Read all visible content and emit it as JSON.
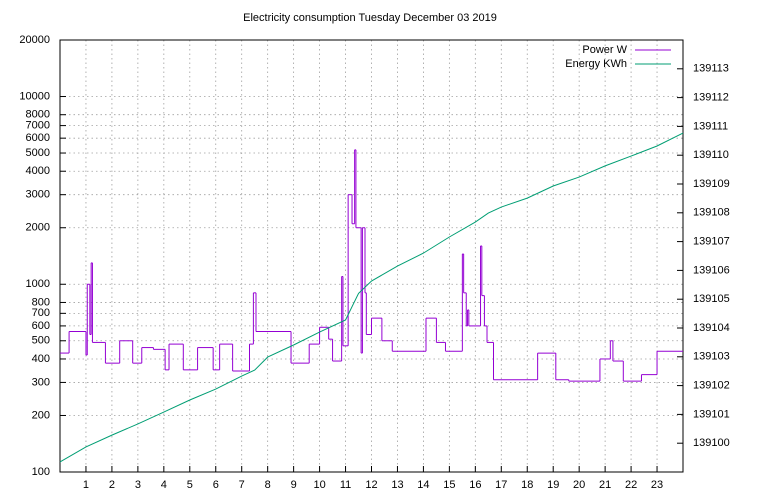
{
  "chart_data": {
    "type": "line",
    "title": "Electricity consumption Tuesday December 03 2019",
    "xlim": [
      0,
      24
    ],
    "xticks": [
      1,
      2,
      3,
      4,
      5,
      6,
      7,
      8,
      9,
      10,
      11,
      12,
      13,
      14,
      15,
      16,
      17,
      18,
      19,
      20,
      21,
      22,
      23
    ],
    "ylim": [
      100,
      20000
    ],
    "ylog": true,
    "yticks": [
      100,
      200,
      300,
      400,
      500,
      600,
      700,
      800,
      1000,
      2000,
      3000,
      4000,
      5000,
      6000,
      7000,
      8000,
      10000,
      20000
    ],
    "y2lim": [
      139099,
      139114
    ],
    "y2ticks": [
      139100,
      139101,
      139102,
      139103,
      139104,
      139105,
      139106,
      139107,
      139108,
      139109,
      139110,
      139111,
      139112,
      139113
    ],
    "grid": true,
    "legend": "top-right",
    "series": [
      {
        "name": "Power W",
        "color": "#9400d3",
        "step": true,
        "x": [
          0,
          0.35,
          1.0,
          1.05,
          1.15,
          1.2,
          1.25,
          1.75,
          2.3,
          2.8,
          3.15,
          3.6,
          4.05,
          4.2,
          4.75,
          5.3,
          5.9,
          6.15,
          6.65,
          7.3,
          7.45,
          7.55,
          8.9,
          9.6,
          10.0,
          10.35,
          10.5,
          10.85,
          10.9,
          11.1,
          11.25,
          11.35,
          11.4,
          11.6,
          11.65,
          11.75,
          11.8,
          12.0,
          12.4,
          12.8,
          14.1,
          14.5,
          14.85,
          15.5,
          15.55,
          15.65,
          15.7,
          15.75,
          16.2,
          16.25,
          16.35,
          16.45,
          16.7,
          18.4,
          19.1,
          19.6,
          20.8,
          21.2,
          21.3,
          21.7,
          22.4,
          23.0
        ],
        "values": [
          430,
          560,
          420,
          1000,
          540,
          1300,
          490,
          380,
          500,
          380,
          460,
          450,
          350,
          480,
          350,
          460,
          350,
          480,
          345,
          480,
          900,
          560,
          380,
          480,
          590,
          510,
          390,
          1100,
          470,
          3000,
          2100,
          5200,
          2000,
          430,
          2000,
          900,
          540,
          660,
          500,
          440,
          660,
          490,
          440,
          1450,
          900,
          600,
          730,
          600,
          1600,
          870,
          600,
          490,
          310,
          430,
          310,
          305,
          400,
          500,
          390,
          305,
          330,
          440
        ]
      },
      {
        "name": "Energy KWh",
        "color": "#009e73",
        "axis": "y2",
        "x": [
          0,
          1,
          2,
          3,
          4,
          5,
          6,
          7,
          7.5,
          8,
          9,
          10,
          11,
          11.5,
          12,
          13,
          14,
          15,
          16,
          16.5,
          17,
          18,
          19,
          20,
          21,
          22,
          23,
          24
        ],
        "values": [
          139099.35,
          139099.87,
          139100.28,
          139100.67,
          139101.08,
          139101.5,
          139101.88,
          139102.33,
          139102.54,
          139102.99,
          139103.41,
          139103.86,
          139104.28,
          139105.2,
          139105.63,
          139106.15,
          139106.6,
          139107.16,
          139107.68,
          139107.99,
          139108.2,
          139108.51,
          139108.93,
          139109.24,
          139109.63,
          139109.97,
          139110.32,
          139110.77
        ]
      }
    ]
  }
}
